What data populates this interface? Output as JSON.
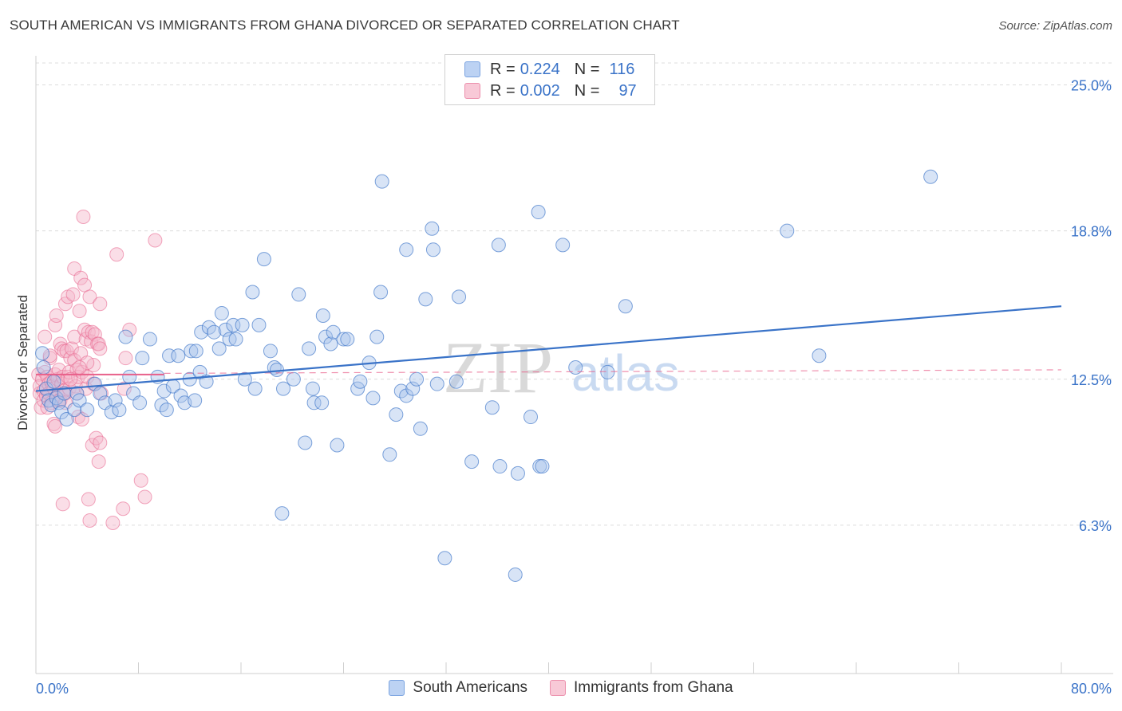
{
  "header": {
    "title": "SOUTH AMERICAN VS IMMIGRANTS FROM GHANA DIVORCED OR SEPARATED CORRELATION CHART",
    "source": "Source: ZipAtlas.com"
  },
  "legend_top": {
    "rows": [
      {
        "r_label": "R =",
        "r_value": "0.224",
        "n_label": "N =",
        "n_value": "116"
      },
      {
        "r_label": "R =",
        "r_value": "0.002",
        "n_label": "N =",
        "n_value": "97"
      }
    ]
  },
  "legend_bottom": {
    "items": [
      {
        "label": "South Americans"
      },
      {
        "label": "Immigrants from Ghana"
      }
    ]
  },
  "watermark": {
    "zip": "ZIP",
    "atlas": "atlas"
  },
  "colors": {
    "blue": "#3a73c8",
    "blue_fill": "#a9c4ec",
    "pink": "#e8608a",
    "pink_fill": "#f4b6c9",
    "tick_label": "#3a73c8",
    "grid": "#dcdcdc"
  },
  "chart_data": {
    "type": "scatter",
    "title": "SOUTH AMERICAN VS IMMIGRANTS FROM GHANA DIVORCED OR SEPARATED CORRELATION CHART",
    "xlabel": "",
    "ylabel": "Divorced or Separated",
    "xlim": [
      0,
      80
    ],
    "ylim": [
      0,
      26
    ],
    "x_tick_labels": [
      "0.0%",
      "80.0%"
    ],
    "y_ticks": [
      6.3,
      12.5,
      18.8,
      25.0
    ],
    "y_tick_labels": [
      "6.3%",
      "12.5%",
      "18.8%",
      "25.0%"
    ],
    "grid": true,
    "legend_position": "top-center",
    "series": [
      {
        "name": "South Americans",
        "color": "#3a73c8",
        "trend": {
          "x": [
            0,
            80
          ],
          "y": [
            12.0,
            15.6
          ]
        },
        "points": [
          [
            0.5,
            13.6
          ],
          [
            0.6,
            13.0
          ],
          [
            0.8,
            12.1
          ],
          [
            1.0,
            11.6
          ],
          [
            1.2,
            11.4
          ],
          [
            1.4,
            12.4
          ],
          [
            1.6,
            11.7
          ],
          [
            1.8,
            11.5
          ],
          [
            2.0,
            11.1
          ],
          [
            2.2,
            11.9
          ],
          [
            2.4,
            10.8
          ],
          [
            3.0,
            11.2
          ],
          [
            3.2,
            11.9
          ],
          [
            3.4,
            11.6
          ],
          [
            4.0,
            11.2
          ],
          [
            4.6,
            12.3
          ],
          [
            5.0,
            11.9
          ],
          [
            5.4,
            11.5
          ],
          [
            5.9,
            11.1
          ],
          [
            6.2,
            11.6
          ],
          [
            6.5,
            11.2
          ],
          [
            7.0,
            14.3
          ],
          [
            7.3,
            12.6
          ],
          [
            7.6,
            11.9
          ],
          [
            8.1,
            11.5
          ],
          [
            8.3,
            13.4
          ],
          [
            8.9,
            14.2
          ],
          [
            9.5,
            12.6
          ],
          [
            9.8,
            11.4
          ],
          [
            10.0,
            12.0
          ],
          [
            10.4,
            13.5
          ],
          [
            10.7,
            12.2
          ],
          [
            11.1,
            13.5
          ],
          [
            11.3,
            11.8
          ],
          [
            11.6,
            11.5
          ],
          [
            12.0,
            12.5
          ],
          [
            12.1,
            13.7
          ],
          [
            12.4,
            11.6
          ],
          [
            12.5,
            13.7
          ],
          [
            12.8,
            12.8
          ],
          [
            12.9,
            14.5
          ],
          [
            13.3,
            12.4
          ],
          [
            13.5,
            14.7
          ],
          [
            13.9,
            14.5
          ],
          [
            14.3,
            13.8
          ],
          [
            14.5,
            15.3
          ],
          [
            14.8,
            14.6
          ],
          [
            15.1,
            14.2
          ],
          [
            15.4,
            14.8
          ],
          [
            15.6,
            14.2
          ],
          [
            16.1,
            14.8
          ],
          [
            16.3,
            12.5
          ],
          [
            16.9,
            16.2
          ],
          [
            17.1,
            12.1
          ],
          [
            17.4,
            14.8
          ],
          [
            17.8,
            17.6
          ],
          [
            18.3,
            13.7
          ],
          [
            18.6,
            13.0
          ],
          [
            18.8,
            12.9
          ],
          [
            19.2,
            6.8
          ],
          [
            19.3,
            12.1
          ],
          [
            20.1,
            12.5
          ],
          [
            20.5,
            16.1
          ],
          [
            21.0,
            9.8
          ],
          [
            21.3,
            13.8
          ],
          [
            21.6,
            12.1
          ],
          [
            21.7,
            11.5
          ],
          [
            22.3,
            11.5
          ],
          [
            22.4,
            15.2
          ],
          [
            22.6,
            14.3
          ],
          [
            23.0,
            14.0
          ],
          [
            23.2,
            14.5
          ],
          [
            23.5,
            9.7
          ],
          [
            24.0,
            14.2
          ],
          [
            24.3,
            14.2
          ],
          [
            25.1,
            12.1
          ],
          [
            25.3,
            12.4
          ],
          [
            26.0,
            13.2
          ],
          [
            26.3,
            11.7
          ],
          [
            26.6,
            14.3
          ],
          [
            26.9,
            16.2
          ],
          [
            27.0,
            20.9
          ],
          [
            27.6,
            9.3
          ],
          [
            28.1,
            11.0
          ],
          [
            28.5,
            12.0
          ],
          [
            28.9,
            18.0
          ],
          [
            28.9,
            11.8
          ],
          [
            29.4,
            12.1
          ],
          [
            29.7,
            12.5
          ],
          [
            30.0,
            10.4
          ],
          [
            30.4,
            15.9
          ],
          [
            30.9,
            18.9
          ],
          [
            31.0,
            18.0
          ],
          [
            31.3,
            12.3
          ],
          [
            31.9,
            4.9
          ],
          [
            32.8,
            12.4
          ],
          [
            33.0,
            16.0
          ],
          [
            34.0,
            9.0
          ],
          [
            35.6,
            11.3
          ],
          [
            36.1,
            18.2
          ],
          [
            36.2,
            8.8
          ],
          [
            37.6,
            8.5
          ],
          [
            38.6,
            10.9
          ],
          [
            39.2,
            19.6
          ],
          [
            39.3,
            8.8
          ],
          [
            39.5,
            8.8
          ],
          [
            41.1,
            18.2
          ],
          [
            42.1,
            13.0
          ],
          [
            44.6,
            12.8
          ],
          [
            46.0,
            15.6
          ],
          [
            58.6,
            18.8
          ],
          [
            61.1,
            13.5
          ],
          [
            69.8,
            21.1
          ],
          [
            37.4,
            4.2
          ],
          [
            10.2,
            11.2
          ]
        ]
      },
      {
        "name": "Immigrants from Ghana",
        "color": "#e8608a",
        "trend": {
          "x": [
            0,
            10
          ],
          "y": [
            12.7,
            12.7
          ]
        },
        "trend_dashed": {
          "x": [
            10,
            80
          ],
          "y": [
            12.75,
            12.9
          ]
        },
        "points": [
          [
            0.2,
            12.7
          ],
          [
            0.3,
            11.9
          ],
          [
            0.3,
            12.2
          ],
          [
            0.4,
            11.3
          ],
          [
            0.5,
            12.5
          ],
          [
            0.6,
            12.0
          ],
          [
            0.6,
            11.6
          ],
          [
            0.7,
            14.3
          ],
          [
            0.7,
            12.8
          ],
          [
            0.8,
            11.8
          ],
          [
            0.9,
            12.6
          ],
          [
            1.0,
            12.3
          ],
          [
            1.0,
            11.9
          ],
          [
            1.1,
            13.4
          ],
          [
            1.2,
            12.4
          ],
          [
            1.2,
            11.5
          ],
          [
            1.3,
            12.2
          ],
          [
            1.4,
            10.6
          ],
          [
            1.4,
            12.1
          ],
          [
            1.5,
            14.8
          ],
          [
            1.5,
            12.7
          ],
          [
            1.5,
            10.5
          ],
          [
            1.6,
            15.2
          ],
          [
            1.7,
            11.8
          ],
          [
            1.7,
            12.5
          ],
          [
            1.8,
            12.9
          ],
          [
            1.8,
            11.6
          ],
          [
            1.9,
            14.0
          ],
          [
            1.9,
            11.6
          ],
          [
            2.0,
            13.8
          ],
          [
            2.0,
            12.3
          ],
          [
            2.1,
            7.2
          ],
          [
            2.1,
            12.6
          ],
          [
            2.2,
            13.7
          ],
          [
            2.2,
            12.0
          ],
          [
            2.3,
            15.7
          ],
          [
            2.3,
            11.9
          ],
          [
            2.3,
            11.5
          ],
          [
            2.4,
            13.7
          ],
          [
            2.5,
            12.6
          ],
          [
            2.5,
            16.0
          ],
          [
            2.6,
            12.8
          ],
          [
            2.6,
            12.1
          ],
          [
            2.7,
            13.4
          ],
          [
            2.8,
            13.8
          ],
          [
            2.9,
            16.1
          ],
          [
            3.0,
            14.3
          ],
          [
            3.0,
            13.3
          ],
          [
            3.0,
            17.2
          ],
          [
            3.1,
            12.2
          ],
          [
            3.2,
            12.9
          ],
          [
            3.2,
            11.9
          ],
          [
            3.3,
            10.9
          ],
          [
            3.3,
            12.6
          ],
          [
            3.4,
            15.4
          ],
          [
            3.5,
            16.8
          ],
          [
            3.5,
            13.6
          ],
          [
            3.6,
            10.8
          ],
          [
            3.6,
            12.8
          ],
          [
            3.7,
            19.4
          ],
          [
            3.8,
            14.6
          ],
          [
            3.8,
            16.5
          ],
          [
            3.9,
            12.1
          ],
          [
            3.9,
            14.2
          ],
          [
            4.0,
            12.6
          ],
          [
            4.1,
            7.4
          ],
          [
            4.1,
            14.5
          ],
          [
            4.2,
            6.5
          ],
          [
            4.2,
            16.0
          ],
          [
            4.3,
            14.1
          ],
          [
            4.4,
            14.5
          ],
          [
            4.4,
            9.7
          ],
          [
            4.5,
            13.1
          ],
          [
            4.5,
            12.3
          ],
          [
            4.6,
            14.4
          ],
          [
            4.7,
            10.0
          ],
          [
            4.8,
            14.0
          ],
          [
            4.9,
            14.0
          ],
          [
            4.9,
            9.0
          ],
          [
            5.0,
            15.7
          ],
          [
            5.0,
            9.8
          ],
          [
            5.0,
            13.8
          ],
          [
            5.1,
            11.9
          ],
          [
            6.0,
            6.4
          ],
          [
            6.3,
            17.8
          ],
          [
            6.8,
            7.0
          ],
          [
            6.9,
            12.1
          ],
          [
            7.0,
            13.4
          ],
          [
            7.3,
            14.6
          ],
          [
            8.2,
            8.2
          ],
          [
            8.5,
            7.5
          ],
          [
            9.3,
            18.4
          ],
          [
            4.0,
            13.2
          ],
          [
            2.7,
            12.5
          ],
          [
            1.1,
            13.5
          ],
          [
            0.9,
            11.3
          ],
          [
            3.4,
            13.0
          ]
        ]
      }
    ]
  }
}
